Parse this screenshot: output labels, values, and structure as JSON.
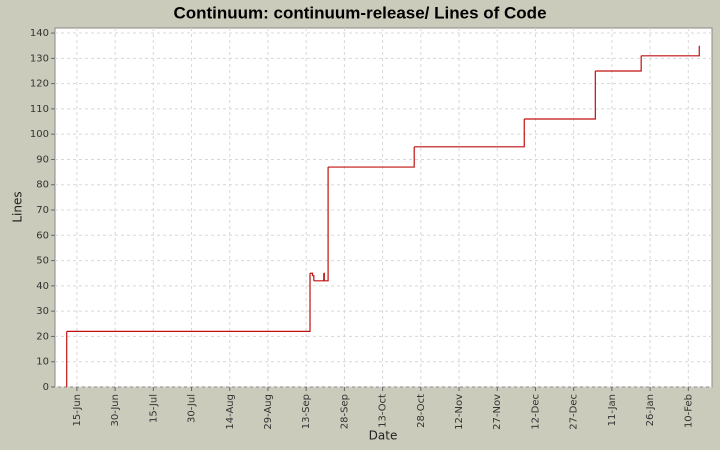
{
  "chart_data": {
    "type": "step",
    "title": "Continuum: continuum-release/ Lines of Code",
    "x_label": "Date",
    "y_label": "Lines",
    "grid": true,
    "xlim": [
      -8.6,
      249.3
    ],
    "xticks": [
      {
        "value": 0,
        "label": "15-Jun"
      },
      {
        "value": 15,
        "label": "30-Jun"
      },
      {
        "value": 30,
        "label": "15-Jul"
      },
      {
        "value": 45,
        "label": "30-Jul"
      },
      {
        "value": 60,
        "label": "14-Aug"
      },
      {
        "value": 75,
        "label": "29-Aug"
      },
      {
        "value": 90,
        "label": "13-Sep"
      },
      {
        "value": 105,
        "label": "28-Sep"
      },
      {
        "value": 120,
        "label": "13-Oct"
      },
      {
        "value": 135,
        "label": "28-Oct"
      },
      {
        "value": 150,
        "label": "12-Nov"
      },
      {
        "value": 165,
        "label": "27-Nov"
      },
      {
        "value": 180,
        "label": "12-Dec"
      },
      {
        "value": 195,
        "label": "27-Dec"
      },
      {
        "value": 210,
        "label": "11-Jan"
      },
      {
        "value": 225,
        "label": "26-Jan"
      },
      {
        "value": 240,
        "label": "10-Feb"
      }
    ],
    "ylim": [
      0,
      142
    ],
    "yticks": [
      0,
      10,
      20,
      30,
      40,
      50,
      60,
      70,
      80,
      90,
      100,
      110,
      120,
      130,
      140
    ],
    "series": [
      {
        "name": "Lines",
        "color": "#c01010",
        "x": [
          -4,
          -4,
          91.5,
          92.5,
          93,
          96.9,
          97.1,
          98.6,
          132.4,
          175.6,
          203.5,
          221.5,
          244.3
        ],
        "values": [
          0,
          22,
          45,
          44,
          42,
          45,
          42,
          87,
          95,
          106,
          125,
          131,
          135
        ]
      }
    ]
  }
}
